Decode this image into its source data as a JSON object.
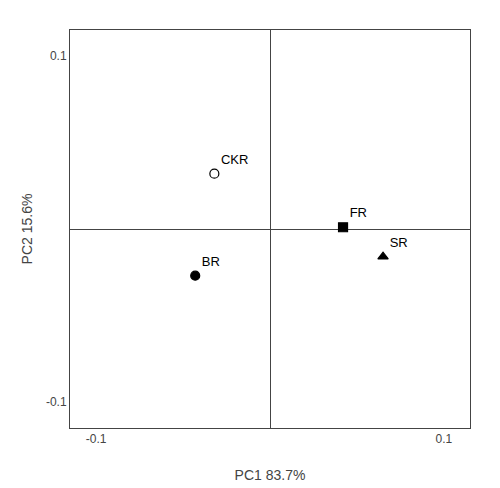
{
  "chart_data": {
    "type": "scatter",
    "xlabel": "PC1 83.7%",
    "ylabel": "PC2 15.6%",
    "series": [
      {
        "name": "CKR",
        "x": [
          -0.032
        ],
        "values": [
          0.032
        ],
        "marker": "circle",
        "color": "white"
      },
      {
        "name": "BR",
        "x": [
          -0.043
        ],
        "values": [
          -0.027
        ],
        "marker": "circle",
        "color": "black"
      },
      {
        "name": "FR",
        "x": [
          0.042
        ],
        "values": [
          0.001
        ],
        "marker": "square",
        "color": "black"
      },
      {
        "name": "SR",
        "x": [
          0.065
        ],
        "values": [
          -0.016
        ],
        "marker": "triangle-up",
        "color": "black"
      }
    ],
    "xlim": [
      -0.115,
      0.115
    ],
    "ylim": [
      -0.115,
      0.115
    ],
    "xticks": [
      -0.1,
      0.1
    ],
    "yticks": [
      -0.1,
      0.1
    ],
    "grid": false
  }
}
